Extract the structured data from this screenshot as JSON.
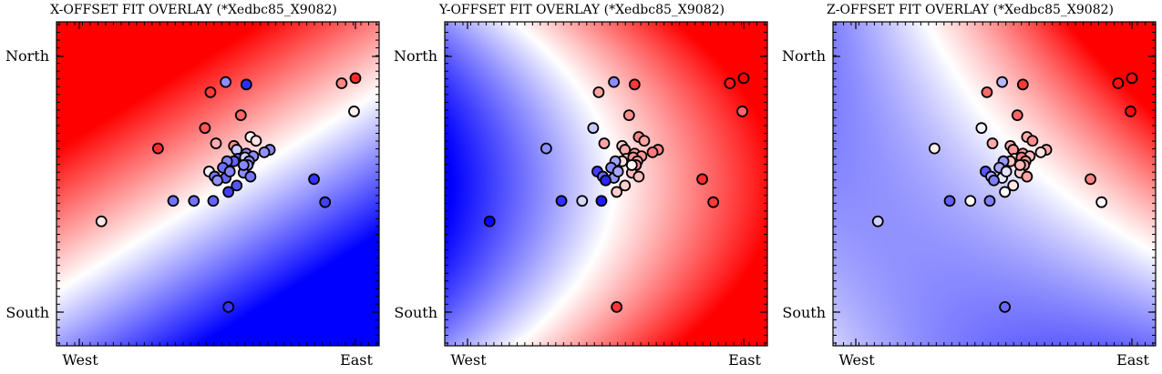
{
  "chart_data": [
    {
      "type": "scatter",
      "title": "X-OFFSET FIT OVERLAY (*Xedbc85_X9082)",
      "x_tick_labels": [
        "West",
        "East"
      ],
      "y_tick_labels": [
        "North",
        "South"
      ],
      "background": "heatmap",
      "colormap": [
        "#0000ff",
        "#ffffff",
        "#ff0000"
      ]
    },
    {
      "type": "scatter",
      "title": "Y-OFFSET FIT OVERLAY (*Xedbc85_X9082)",
      "x_tick_labels": [
        "West",
        "East"
      ],
      "y_tick_labels": [
        "North",
        "South"
      ],
      "background": "heatmap",
      "colormap": [
        "#0000ff",
        "#ffffff",
        "#ff0000"
      ]
    },
    {
      "type": "scatter",
      "title": "Z-OFFSET FIT OVERLAY (*Xedbc85_X9082)",
      "x_tick_labels": [
        "West",
        "East"
      ],
      "y_tick_labels": [
        "North",
        "South"
      ],
      "background": "heatmap",
      "colormap": [
        "#0000ff",
        "#ffffff",
        "#ff0000"
      ]
    }
  ],
  "points": [
    [
      -0.84,
      -0.29,
      0.1,
      -0.97,
      -0.18
    ],
    [
      -0.43,
      0.28,
      0.82,
      -0.44,
      0.07
    ],
    [
      0.06,
      0.8,
      -0.45,
      -0.45,
      -0.28
    ],
    [
      0.21,
      0.78,
      -0.82,
      0.78,
      0.78
    ],
    [
      -0.05,
      0.72,
      0.77,
      0.36,
      0.58
    ],
    [
      0.9,
      0.79,
      0.47,
      0.9,
      0.94
    ],
    [
      1.0,
      0.83,
      0.83,
      0.99,
      0.94
    ],
    [
      0.99,
      0.57,
      0.06,
      0.6,
      0.95
    ],
    [
      0.17,
      0.54,
      0.6,
      0.44,
      0.6
    ],
    [
      -0.09,
      0.44,
      0.66,
      -0.22,
      -0.05
    ],
    [
      -0.01,
      0.32,
      0.32,
      0.36,
      0.33
    ],
    [
      0.24,
      0.37,
      0.04,
      0.48,
      0.32
    ],
    [
      0.28,
      0.34,
      0.1,
      0.36,
      0.45
    ],
    [
      0.38,
      0.27,
      -0.47,
      0.48,
      0.35
    ],
    [
      0.12,
      0.3,
      0.44,
      0.19,
      0.32
    ],
    [
      0.14,
      0.27,
      -0.21,
      0.33,
      0.4
    ],
    [
      0.21,
      0.24,
      -0.48,
      0.4,
      0.4
    ],
    [
      0.26,
      0.22,
      -0.45,
      0.4,
      0.26
    ],
    [
      0.15,
      0.2,
      -0.6,
      0.25,
      0.09
    ],
    [
      0.2,
      0.21,
      -0.19,
      0.41,
      0.49
    ],
    [
      0.12,
      0.18,
      -0.61,
      0.12,
      0.23
    ],
    [
      0.07,
      0.18,
      -0.49,
      -0.36,
      -0.4
    ],
    [
      0.23,
      0.18,
      -0.45,
      0.35,
      0.39
    ],
    [
      0.22,
      0.15,
      -0.4,
      0.46,
      0.37
    ],
    [
      0.04,
      0.13,
      -0.57,
      -0.47,
      -0.35
    ],
    [
      -0.06,
      0.1,
      -0.06,
      -0.75,
      -0.66
    ],
    [
      0.19,
      0.09,
      -0.45,
      0.27,
      0.18
    ],
    [
      0.34,
      0.25,
      -0.43,
      0.52,
      0.11
    ],
    [
      0.19,
      0.15,
      -0.47,
      0.04,
      0.28
    ],
    [
      -0.02,
      0.06,
      -0.52,
      -0.58,
      -0.33
    ],
    [
      0.06,
      0.05,
      -0.6,
      -0.42,
      -0.1
    ],
    [
      0.24,
      0.06,
      -0.54,
      0.26,
      0.36
    ],
    [
      0.14,
      -0.01,
      -0.67,
      0.2,
      0.09
    ],
    [
      0.0,
      0.03,
      -0.43,
      -0.85,
      -0.51
    ],
    [
      0.09,
      0.1,
      -0.48,
      -0.35,
      -0.11
    ],
    [
      0.7,
      0.04,
      -0.8,
      0.82,
      0.48
    ],
    [
      -0.03,
      -0.13,
      -0.61,
      -0.89,
      -0.5
    ],
    [
      -0.17,
      -0.13,
      -0.55,
      -0.16,
      0.02
    ],
    [
      0.08,
      -0.06,
      -0.75,
      0.19,
      0.01
    ],
    [
      -0.32,
      -0.13,
      -0.55,
      -0.82,
      -0.62
    ],
    [
      0.78,
      -0.14,
      -0.75,
      0.78,
      -0.02
    ],
    [
      0.08,
      -0.96,
      -0.8,
      0.79,
      -0.59
    ]
  ]
}
